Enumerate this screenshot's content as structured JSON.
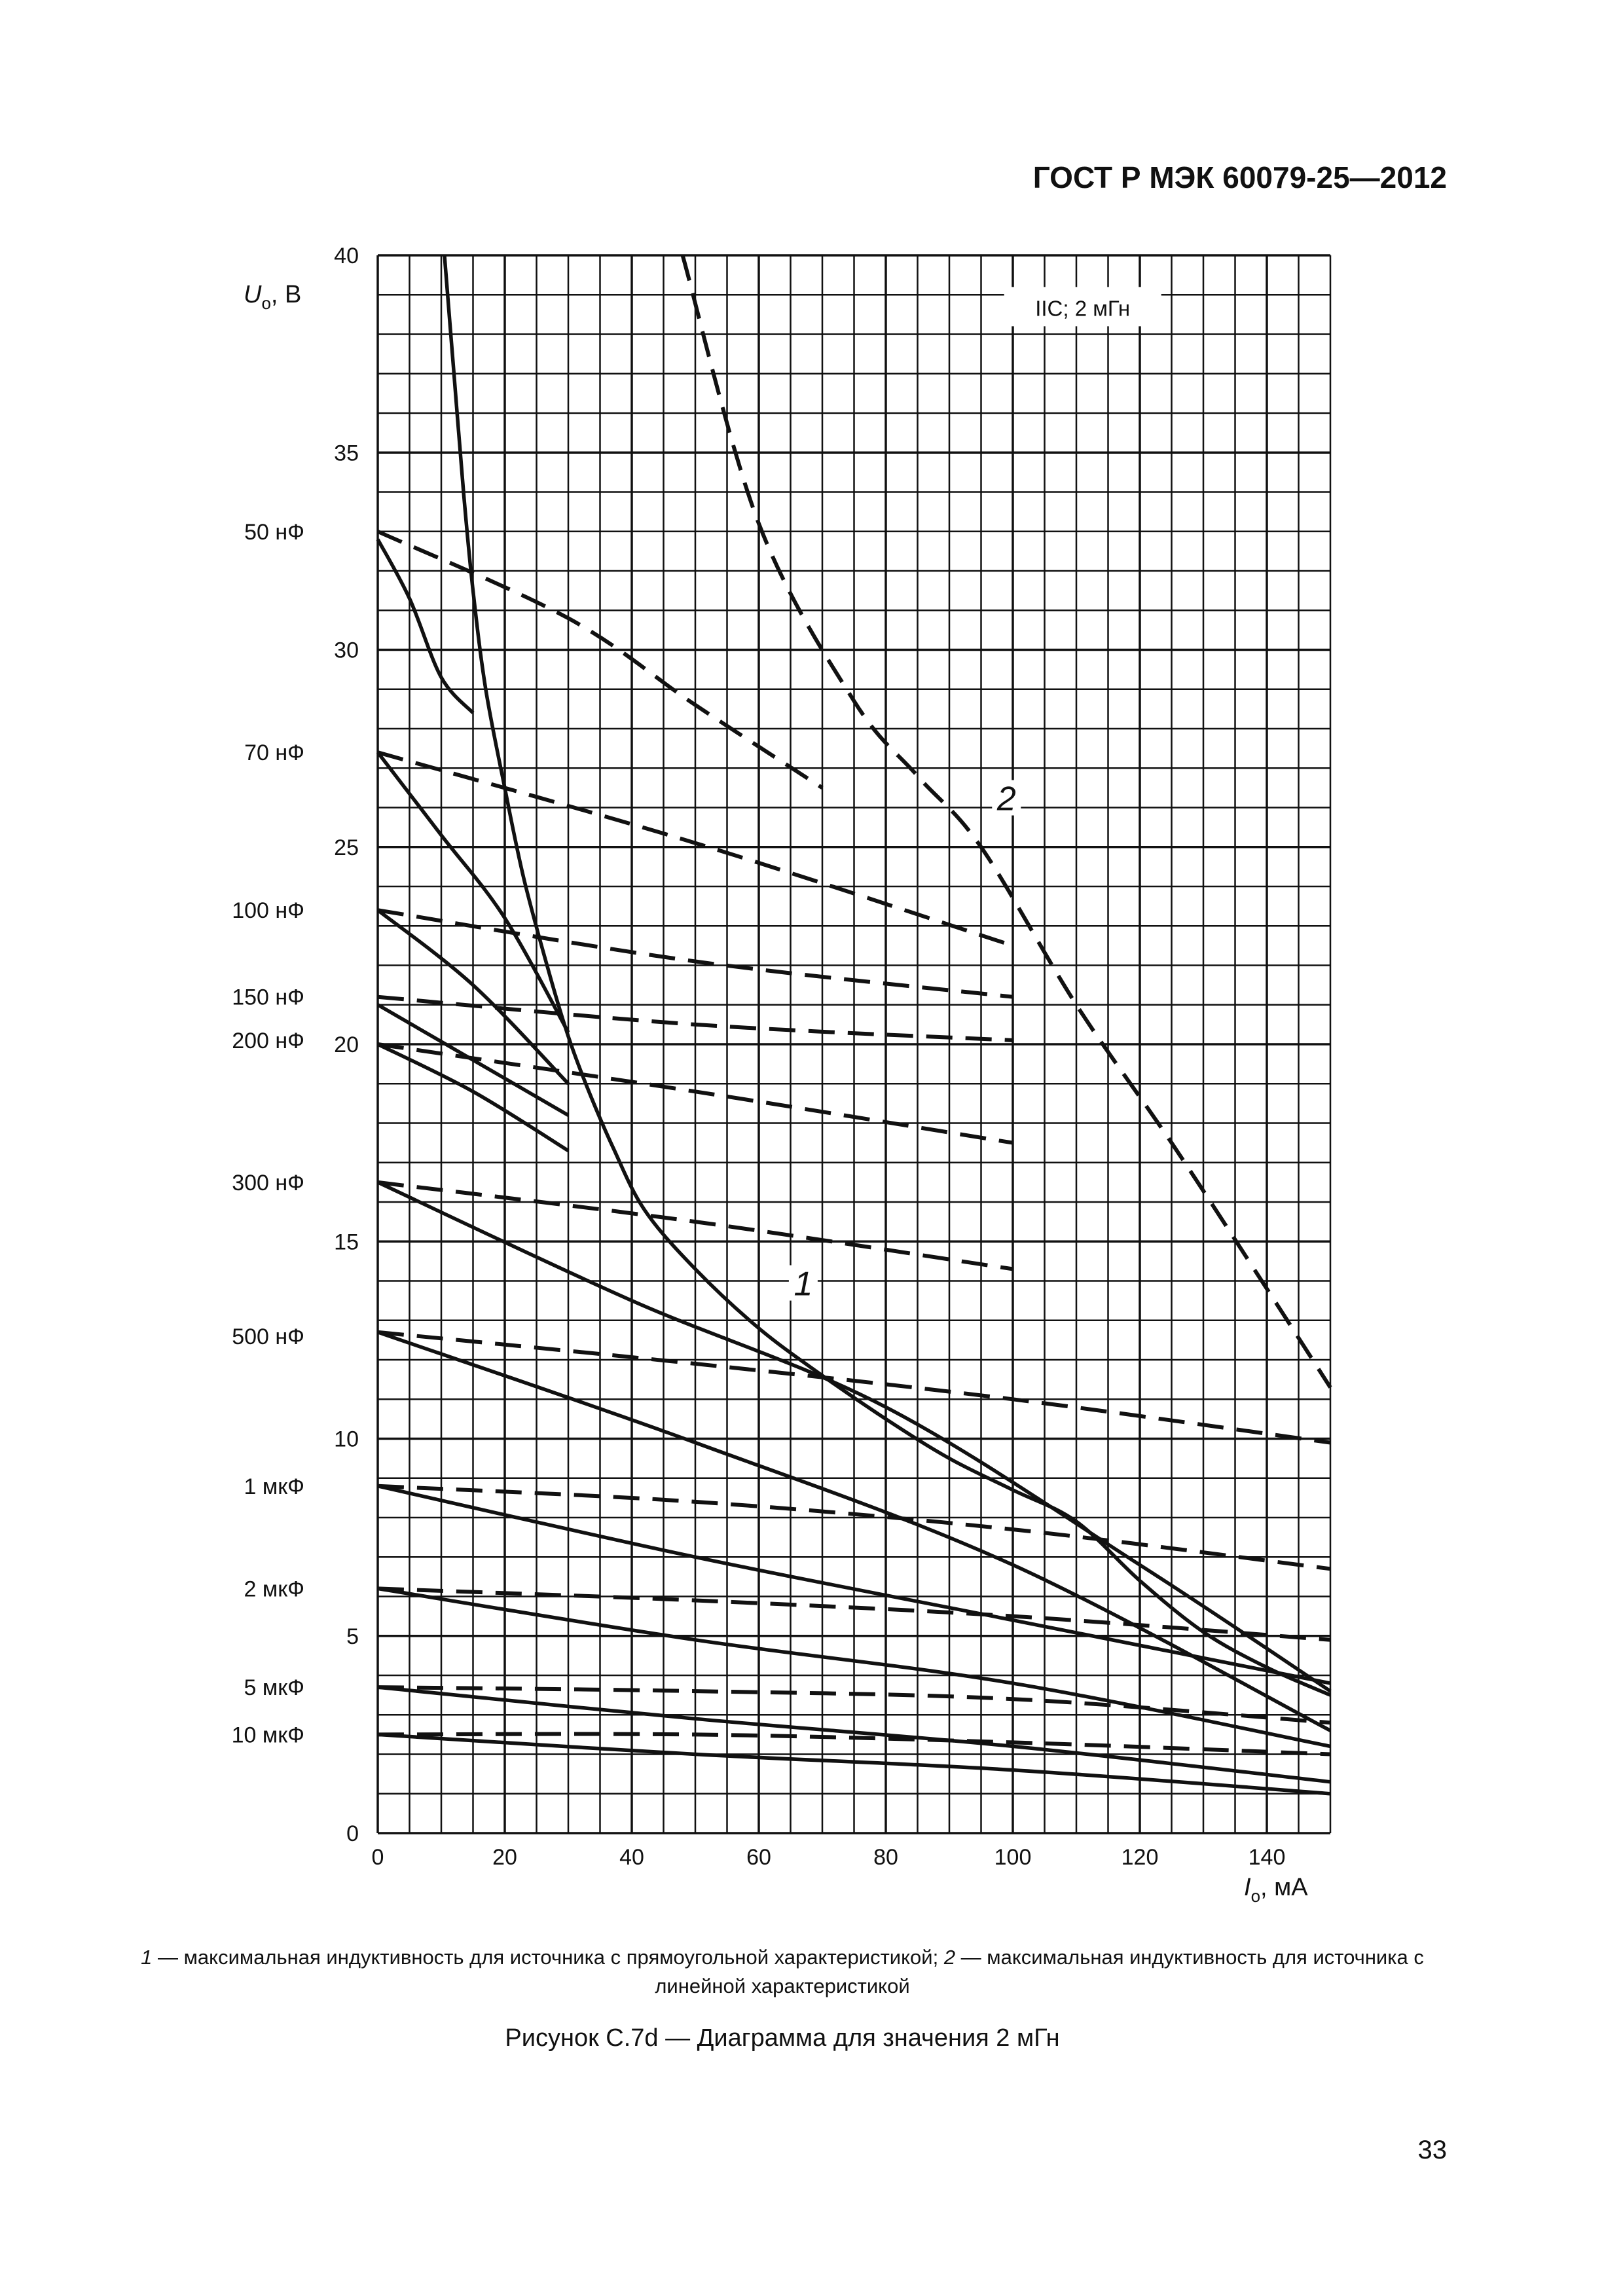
{
  "header": {
    "standard": "ГОСТ Р МЭК 60079-25—2012"
  },
  "page_number": "33",
  "legend": {
    "item1_num": "1",
    "item1_text": " — максимальная индуктивность для источника с прямоугольной характеристикой; ",
    "item2_num": "2",
    "item2_text": " — максимальная индуктивность для источника с линейной характеристикой"
  },
  "caption": "Рисунок С.7d — Диаграмма для значения 2 мГн",
  "chart_data": {
    "type": "line",
    "title": "IIC; 2 мГн",
    "xlabel": {
      "symbol": "I",
      "sub": "o",
      "unit": ", мА"
    },
    "ylabel": {
      "symbol": "U",
      "sub": "o",
      "unit": ", В"
    },
    "xlim": [
      0,
      150
    ],
    "ylim": [
      0,
      40
    ],
    "xticks": [
      "0",
      "20",
      "40",
      "60",
      "80",
      "100",
      "120",
      "140"
    ],
    "yticks": [
      "0",
      "5",
      "10",
      "15",
      "20",
      "25",
      "30",
      "35",
      "40"
    ],
    "grid": true,
    "capacitance_labels": [
      {
        "text": "50 нФ",
        "u": 33.0
      },
      {
        "text": "70 нФ",
        "u": 27.4
      },
      {
        "text": "100 нФ",
        "u": 23.4
      },
      {
        "text": "150 нФ",
        "u": 21.2
      },
      {
        "text": "200 нФ",
        "u": 20.1
      },
      {
        "text": "300 нФ",
        "u": 16.5
      },
      {
        "text": "500 нФ",
        "u": 12.6
      },
      {
        "text": "1 мкФ",
        "u": 8.8
      },
      {
        "text": "2 мкФ",
        "u": 6.2
      },
      {
        "text": "5 мкФ",
        "u": 3.7
      },
      {
        "text": "10 мкФ",
        "u": 2.5
      }
    ],
    "annotations": [
      {
        "text": "1",
        "x": 67,
        "y": 13.7
      },
      {
        "text": "2",
        "x": 99,
        "y": 26.0
      }
    ],
    "series": [
      {
        "style": "solid",
        "points": [
          [
            10.5,
            40
          ],
          [
            12,
            37
          ],
          [
            13.5,
            34
          ],
          [
            15,
            31.5
          ],
          [
            17,
            29
          ],
          [
            20,
            26.5
          ],
          [
            23,
            24.2
          ],
          [
            27,
            21.8
          ],
          [
            30,
            20.2
          ],
          [
            33,
            18.9
          ],
          [
            37,
            17.4
          ],
          [
            42,
            15.8
          ],
          [
            50,
            14.3
          ],
          [
            60,
            12.8
          ],
          [
            70,
            11.6
          ],
          [
            80,
            10.5
          ],
          [
            90,
            9.5
          ],
          [
            100,
            8.7
          ],
          [
            110,
            7.9
          ],
          [
            120,
            6.4
          ],
          [
            130,
            5.1
          ],
          [
            140,
            4.2
          ],
          [
            150,
            3.5
          ]
        ]
      },
      {
        "style": "dashed",
        "points": [
          [
            48,
            40
          ],
          [
            60,
            33.2
          ],
          [
            75,
            28.7
          ],
          [
            85,
            26.8
          ],
          [
            95,
            25
          ],
          [
            110,
            21
          ],
          [
            125,
            17.5
          ],
          [
            140,
            13.8
          ],
          [
            150,
            11.3
          ]
        ]
      },
      {
        "style": "solid",
        "points": [
          [
            0,
            32.8
          ],
          [
            5,
            31.3
          ],
          [
            10,
            29.3
          ],
          [
            15,
            28.4
          ]
        ]
      },
      {
        "style": "dashed",
        "points": [
          [
            0,
            33.0
          ],
          [
            30,
            30.8
          ],
          [
            50,
            28.6
          ],
          [
            70,
            26.5
          ]
        ]
      },
      {
        "style": "solid",
        "points": [
          [
            0,
            27.4
          ],
          [
            10,
            25.3
          ],
          [
            20,
            23.2
          ],
          [
            30,
            20.3
          ]
        ]
      },
      {
        "style": "dashed",
        "points": [
          [
            0,
            27.4
          ],
          [
            50,
            25.1
          ],
          [
            100,
            22.5
          ]
        ]
      },
      {
        "style": "solid",
        "points": [
          [
            0,
            23.4
          ],
          [
            15,
            21.5
          ],
          [
            30,
            19.0
          ]
        ]
      },
      {
        "style": "dashed",
        "points": [
          [
            0,
            23.4
          ],
          [
            50,
            22.1
          ],
          [
            100,
            21.2
          ]
        ]
      },
      {
        "style": "solid",
        "points": [
          [
            0,
            21.0
          ],
          [
            15,
            19.6
          ],
          [
            30,
            18.2
          ]
        ]
      },
      {
        "style": "dashed",
        "points": [
          [
            0,
            21.2
          ],
          [
            50,
            20.5
          ],
          [
            100,
            20.1
          ]
        ]
      },
      {
        "style": "solid",
        "points": [
          [
            0,
            20.0
          ],
          [
            15,
            18.8
          ],
          [
            30,
            17.3
          ]
        ]
      },
      {
        "style": "dashed",
        "points": [
          [
            0,
            20.0
          ],
          [
            50,
            18.8
          ],
          [
            100,
            17.5
          ]
        ]
      },
      {
        "style": "solid",
        "points": [
          [
            0,
            16.5
          ],
          [
            40,
            13.5
          ],
          [
            80,
            10.8
          ],
          [
            120,
            6.8
          ],
          [
            150,
            3.6
          ]
        ]
      },
      {
        "style": "dashed",
        "points": [
          [
            0,
            16.5
          ],
          [
            50,
            15.5
          ],
          [
            100,
            14.3
          ]
        ]
      },
      {
        "style": "solid",
        "points": [
          [
            0,
            12.7
          ],
          [
            50,
            9.9
          ],
          [
            100,
            6.8
          ],
          [
            150,
            2.6
          ]
        ]
      },
      {
        "style": "dashed",
        "points": [
          [
            0,
            12.7
          ],
          [
            50,
            11.9
          ],
          [
            100,
            11.0
          ],
          [
            150,
            9.9
          ]
        ]
      },
      {
        "style": "solid",
        "points": [
          [
            0,
            8.8
          ],
          [
            50,
            7.0
          ],
          [
            100,
            5.4
          ],
          [
            150,
            3.8
          ]
        ]
      },
      {
        "style": "dashed",
        "points": [
          [
            0,
            8.8
          ],
          [
            50,
            8.4
          ],
          [
            100,
            7.7
          ],
          [
            150,
            6.7
          ]
        ]
      },
      {
        "style": "solid",
        "points": [
          [
            0,
            6.2
          ],
          [
            50,
            4.9
          ],
          [
            100,
            3.8
          ],
          [
            150,
            2.2
          ]
        ]
      },
      {
        "style": "dashed",
        "points": [
          [
            0,
            6.2
          ],
          [
            50,
            5.9
          ],
          [
            100,
            5.5
          ],
          [
            150,
            4.9
          ]
        ]
      },
      {
        "style": "solid",
        "points": [
          [
            0,
            3.7
          ],
          [
            50,
            2.9
          ],
          [
            100,
            2.2
          ],
          [
            150,
            1.3
          ]
        ]
      },
      {
        "style": "dashed",
        "points": [
          [
            0,
            3.7
          ],
          [
            50,
            3.6
          ],
          [
            100,
            3.4
          ],
          [
            150,
            2.8
          ]
        ]
      },
      {
        "style": "solid",
        "points": [
          [
            0,
            2.5
          ],
          [
            50,
            2.0
          ],
          [
            100,
            1.6
          ],
          [
            150,
            1.0
          ]
        ]
      },
      {
        "style": "dashed",
        "points": [
          [
            0,
            2.5
          ],
          [
            50,
            2.5
          ],
          [
            100,
            2.3
          ],
          [
            150,
            2.0
          ]
        ]
      }
    ]
  }
}
